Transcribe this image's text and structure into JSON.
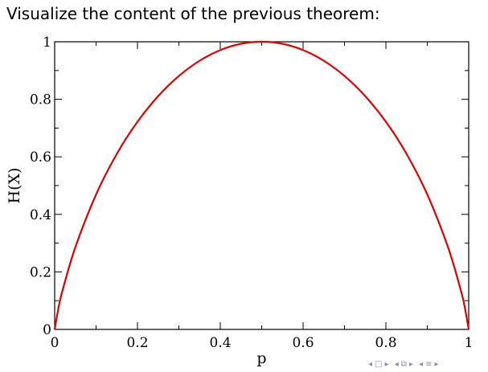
{
  "slide": {
    "heading": "Visualize the content of the previous theorem:"
  },
  "chart_data": {
    "type": "line",
    "title": "",
    "xlabel": "p",
    "ylabel": "H(X)",
    "xlim": [
      0,
      1
    ],
    "ylim": [
      0,
      1
    ],
    "x_ticks": [
      "0",
      "0.2",
      "0.4",
      "0.6",
      "0.8",
      "1"
    ],
    "y_ticks": [
      "0",
      "0.2",
      "0.4",
      "0.6",
      "0.8",
      "1"
    ],
    "grid": false,
    "legend": "none",
    "series": [
      {
        "color": "#e00000",
        "x": [
          0,
          0.01,
          0.02,
          0.05,
          0.1,
          0.15,
          0.2,
          0.25,
          0.3,
          0.35,
          0.4,
          0.45,
          0.5,
          0.55,
          0.6,
          0.65,
          0.7,
          0.75,
          0.8,
          0.85,
          0.9,
          0.95,
          0.98,
          0.99,
          1
        ],
        "y": [
          0,
          0.081,
          0.141,
          0.286,
          0.469,
          0.61,
          0.722,
          0.811,
          0.881,
          0.934,
          0.971,
          0.993,
          1,
          0.993,
          0.971,
          0.934,
          0.881,
          0.811,
          0.722,
          0.61,
          0.469,
          0.286,
          0.141,
          0.081,
          0
        ]
      }
    ]
  },
  "navigation": {
    "icons": [
      "triangle-left-icon",
      "frame-icon",
      "triangle-right-icon",
      "triangle-left-icon",
      "slide-icon",
      "triangle-right-icon",
      "triangle-left-icon",
      "section-icon",
      "triangle-right-icon"
    ]
  }
}
